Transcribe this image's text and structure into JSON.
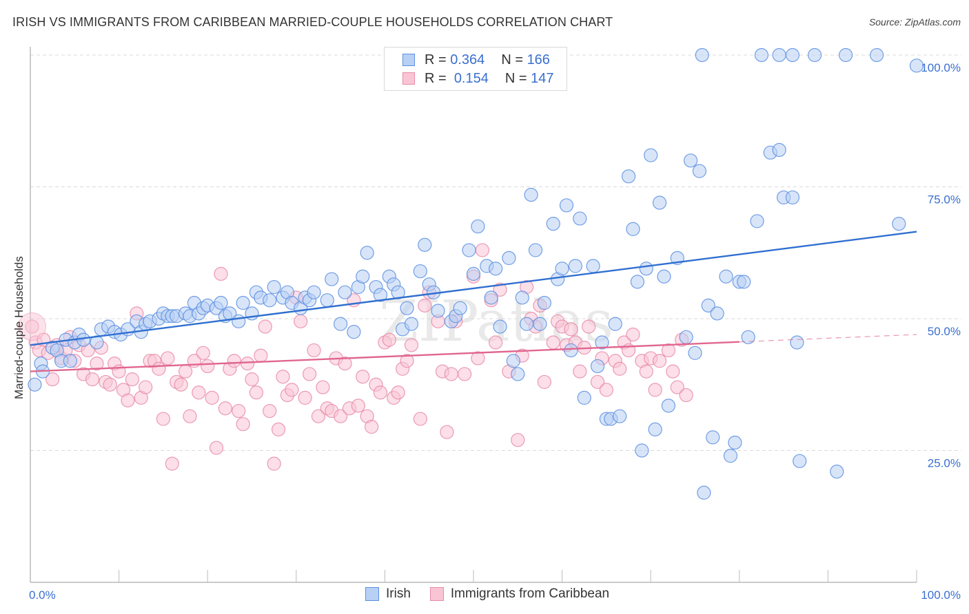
{
  "title": "IRISH VS IMMIGRANTS FROM CARIBBEAN MARRIED-COUPLE HOUSEHOLDS CORRELATION CHART",
  "source": "Source: ZipAtlas.com",
  "watermark": "ZIPatlas",
  "legend": {
    "rows": [
      {
        "r_label": "R =",
        "r_value": "0.364",
        "n_label": "N =",
        "n_value": "166"
      },
      {
        "r_label": "R =",
        "r_value": "0.154",
        "n_label": "N =",
        "n_value": "147"
      }
    ]
  },
  "bottom_legend": [
    "Irish",
    "Immigrants from Caribbean"
  ],
  "colors": {
    "irish_fill": "#b8d0f4",
    "irish_stroke": "#5b8ee0",
    "irish_line": "#2f6fd0",
    "carib_fill": "#f9c5d5",
    "carib_stroke": "#e88aa8",
    "carib_line": "#e0668f",
    "axis_text": "#3a6fd0"
  },
  "chart_data": {
    "type": "scatter",
    "title": "IRISH VS IMMIGRANTS FROM CARIBBEAN MARRIED-COUPLE HOUSEHOLDS CORRELATION CHART",
    "xlabel": "",
    "ylabel": "Married-couple Households",
    "xlim": [
      0,
      100
    ],
    "ylim": [
      0,
      100
    ],
    "x_tick_labels": [
      "0.0%",
      "100.0%"
    ],
    "y_tick_labels": [
      "25.0%",
      "50.0%",
      "75.0%",
      "100.0%"
    ],
    "y_ticks": [
      25,
      50,
      75,
      100
    ],
    "grid": true,
    "legend_position": "top-center",
    "series": [
      {
        "name": "Irish",
        "R": 0.364,
        "N": 166,
        "trend": {
          "x0": 0,
          "y0": 45.0,
          "x1": 100,
          "y1": 66.5,
          "dashed_from": null
        },
        "points": [
          [
            0.5,
            37.5
          ],
          [
            1.2,
            41.5
          ],
          [
            1.4,
            40.0
          ],
          [
            2.5,
            44.5
          ],
          [
            3.0,
            44.0
          ],
          [
            3.5,
            42.0
          ],
          [
            4.0,
            46.0
          ],
          [
            4.5,
            42.0
          ],
          [
            5.0,
            45.5
          ],
          [
            5.5,
            47.0
          ],
          [
            6.0,
            46.0
          ],
          [
            7.5,
            45.5
          ],
          [
            8.0,
            48.0
          ],
          [
            8.8,
            48.5
          ],
          [
            9.5,
            47.5
          ],
          [
            10.2,
            47.0
          ],
          [
            11.0,
            48.0
          ],
          [
            12.0,
            49.5
          ],
          [
            12.5,
            47.5
          ],
          [
            13.0,
            49.0
          ],
          [
            13.5,
            49.5
          ],
          [
            14.5,
            50.0
          ],
          [
            15.0,
            51.0
          ],
          [
            15.5,
            50.5
          ],
          [
            16.0,
            50.5
          ],
          [
            16.5,
            50.5
          ],
          [
            17.5,
            51.0
          ],
          [
            18.0,
            50.5
          ],
          [
            18.5,
            53.0
          ],
          [
            19.0,
            51.0
          ],
          [
            19.5,
            52.0
          ],
          [
            20.0,
            52.5
          ],
          [
            21.0,
            52.0
          ],
          [
            21.5,
            53.0
          ],
          [
            22.0,
            50.5
          ],
          [
            22.5,
            51.0
          ],
          [
            23.5,
            49.5
          ],
          [
            24.0,
            53.0
          ],
          [
            25.0,
            51.0
          ],
          [
            25.5,
            55.0
          ],
          [
            26.0,
            54.0
          ],
          [
            27.0,
            53.5
          ],
          [
            27.5,
            56.0
          ],
          [
            28.5,
            54.0
          ],
          [
            29.0,
            55.0
          ],
          [
            29.5,
            53.0
          ],
          [
            30.5,
            52.0
          ],
          [
            31.0,
            54.0
          ],
          [
            31.5,
            53.5
          ],
          [
            32.0,
            55.0
          ],
          [
            33.5,
            53.5
          ],
          [
            34.0,
            57.5
          ],
          [
            35.0,
            49.0
          ],
          [
            35.5,
            55.0
          ],
          [
            36.5,
            47.5
          ],
          [
            37.0,
            56.0
          ],
          [
            37.5,
            58.0
          ],
          [
            38.0,
            62.5
          ],
          [
            39.0,
            56.0
          ],
          [
            39.5,
            54.5
          ],
          [
            40.5,
            58.0
          ],
          [
            41.0,
            56.5
          ],
          [
            41.5,
            55.0
          ],
          [
            42.0,
            48.0
          ],
          [
            42.5,
            52.0
          ],
          [
            43.0,
            49.0
          ],
          [
            44.0,
            59.0
          ],
          [
            44.5,
            64.0
          ],
          [
            45.0,
            56.5
          ],
          [
            45.5,
            55.0
          ],
          [
            46.0,
            51.5
          ],
          [
            47.5,
            49.5
          ],
          [
            48.0,
            50.5
          ],
          [
            48.5,
            52.0
          ],
          [
            49.5,
            63.0
          ],
          [
            50.0,
            58.5
          ],
          [
            50.5,
            67.5
          ],
          [
            51.5,
            60.0
          ],
          [
            52.0,
            54.0
          ],
          [
            52.5,
            59.5
          ],
          [
            53.0,
            48.5
          ],
          [
            54.0,
            61.5
          ],
          [
            54.5,
            42.0
          ],
          [
            55.0,
            39.5
          ],
          [
            55.5,
            54.0
          ],
          [
            56.0,
            49.0
          ],
          [
            56.5,
            73.5
          ],
          [
            57.0,
            63.0
          ],
          [
            57.5,
            49.0
          ],
          [
            58.0,
            53.0
          ],
          [
            59.0,
            68.0
          ],
          [
            59.5,
            57.5
          ],
          [
            60.0,
            59.5
          ],
          [
            60.5,
            71.5
          ],
          [
            61.0,
            44.0
          ],
          [
            61.5,
            60.0
          ],
          [
            62.0,
            69.0
          ],
          [
            62.5,
            35.0
          ],
          [
            63.5,
            60.0
          ],
          [
            64.0,
            41.0
          ],
          [
            64.5,
            45.5
          ],
          [
            65.0,
            31.0
          ],
          [
            65.5,
            31.0
          ],
          [
            66.0,
            49.0
          ],
          [
            66.5,
            31.5
          ],
          [
            67.5,
            77.0
          ],
          [
            68.0,
            67.0
          ],
          [
            68.5,
            57.0
          ],
          [
            69.0,
            25.0
          ],
          [
            69.5,
            59.5
          ],
          [
            70.0,
            81.0
          ],
          [
            70.5,
            29.0
          ],
          [
            71.0,
            72.0
          ],
          [
            71.5,
            58.0
          ],
          [
            72.0,
            33.5
          ],
          [
            73.0,
            61.5
          ],
          [
            74.0,
            46.5
          ],
          [
            74.5,
            80.0
          ],
          [
            75.0,
            43.5
          ],
          [
            75.5,
            78.0
          ],
          [
            76.0,
            17.0
          ],
          [
            76.5,
            52.5
          ],
          [
            77.0,
            27.5
          ],
          [
            77.5,
            51.0
          ],
          [
            78.5,
            58.0
          ],
          [
            79.0,
            24.0
          ],
          [
            79.5,
            26.5
          ],
          [
            80.0,
            57.0
          ],
          [
            80.5,
            57.0
          ],
          [
            81.0,
            46.5
          ],
          [
            82.0,
            68.5
          ],
          [
            83.5,
            81.5
          ],
          [
            84.5,
            82.0
          ],
          [
            85.0,
            73.0
          ],
          [
            86.0,
            73.0
          ],
          [
            86.5,
            45.5
          ],
          [
            86.8,
            23.0
          ],
          [
            75.8,
            100
          ],
          [
            82.5,
            100
          ],
          [
            84.5,
            100
          ],
          [
            86.0,
            100
          ],
          [
            88.5,
            100
          ],
          [
            92.0,
            100
          ],
          [
            95.5,
            100
          ],
          [
            91.0,
            21.0
          ],
          [
            98.0,
            68.0
          ],
          [
            100,
            98.0
          ]
        ]
      },
      {
        "name": "Immigrants from Caribbean",
        "R": 0.154,
        "N": 147,
        "trend": {
          "x0": 0,
          "y0": 40.0,
          "x1": 100,
          "y1": 47.0,
          "dashed_from": 80
        },
        "points": [
          [
            0.2,
            48.5
          ],
          [
            0.6,
            45.5
          ],
          [
            1.0,
            44.0
          ],
          [
            1.5,
            46.0
          ],
          [
            2.0,
            43.5
          ],
          [
            2.5,
            38.5
          ],
          [
            3.0,
            45.0
          ],
          [
            3.5,
            42.5
          ],
          [
            4.0,
            44.0
          ],
          [
            4.5,
            46.5
          ],
          [
            5.0,
            42.0
          ],
          [
            5.5,
            45.0
          ],
          [
            6.0,
            39.5
          ],
          [
            6.5,
            44.0
          ],
          [
            7.0,
            38.5
          ],
          [
            7.5,
            41.5
          ],
          [
            8.0,
            44.5
          ],
          [
            8.5,
            38.0
          ],
          [
            9.0,
            37.5
          ],
          [
            9.5,
            41.5
          ],
          [
            10.0,
            40.0
          ],
          [
            10.5,
            36.5
          ],
          [
            11.0,
            34.5
          ],
          [
            11.5,
            38.5
          ],
          [
            12.0,
            51.0
          ],
          [
            12.5,
            35.0
          ],
          [
            13.0,
            37.0
          ],
          [
            13.5,
            42.0
          ],
          [
            14.0,
            42.0
          ],
          [
            14.5,
            40.5
          ],
          [
            15.0,
            31.0
          ],
          [
            15.5,
            42.5
          ],
          [
            16.0,
            22.5
          ],
          [
            16.5,
            38.0
          ],
          [
            17.0,
            37.5
          ],
          [
            17.5,
            40.0
          ],
          [
            18.0,
            31.5
          ],
          [
            18.5,
            42.0
          ],
          [
            19.0,
            36.0
          ],
          [
            19.5,
            43.5
          ],
          [
            20.0,
            41.0
          ],
          [
            20.5,
            35.0
          ],
          [
            21.0,
            25.5
          ],
          [
            21.5,
            58.5
          ],
          [
            22.0,
            33.0
          ],
          [
            22.5,
            40.5
          ],
          [
            23.0,
            42.0
          ],
          [
            23.5,
            32.5
          ],
          [
            24.0,
            30.0
          ],
          [
            24.5,
            41.5
          ],
          [
            25.0,
            38.5
          ],
          [
            25.5,
            36.0
          ],
          [
            26.0,
            43.0
          ],
          [
            26.5,
            48.5
          ],
          [
            27.0,
            32.5
          ],
          [
            27.5,
            22.5
          ],
          [
            28.0,
            29.0
          ],
          [
            28.5,
            39.0
          ],
          [
            29.0,
            35.5
          ],
          [
            29.5,
            36.5
          ],
          [
            30.0,
            54.0
          ],
          [
            30.5,
            49.5
          ],
          [
            31.0,
            35.0
          ],
          [
            31.5,
            39.5
          ],
          [
            32.0,
            44.0
          ],
          [
            32.5,
            31.5
          ],
          [
            33.0,
            37.0
          ],
          [
            33.5,
            33.0
          ],
          [
            34.0,
            32.5
          ],
          [
            34.5,
            42.5
          ],
          [
            35.0,
            31.5
          ],
          [
            35.5,
            41.5
          ],
          [
            36.0,
            33.0
          ],
          [
            36.5,
            53.5
          ],
          [
            37.0,
            33.5
          ],
          [
            37.5,
            39.0
          ],
          [
            38.0,
            31.5
          ],
          [
            38.5,
            29.5
          ],
          [
            39.0,
            37.5
          ],
          [
            39.5,
            36.0
          ],
          [
            40.0,
            45.5
          ],
          [
            40.5,
            46.0
          ],
          [
            41.0,
            35.0
          ],
          [
            41.5,
            36.0
          ],
          [
            42.0,
            40.5
          ],
          [
            42.5,
            42.0
          ],
          [
            43.0,
            45.0
          ],
          [
            44.0,
            31.0
          ],
          [
            44.5,
            52.5
          ],
          [
            45.0,
            55.0
          ],
          [
            46.0,
            49.5
          ],
          [
            46.5,
            40.0
          ],
          [
            47.0,
            28.5
          ],
          [
            47.5,
            39.5
          ],
          [
            48.0,
            49.5
          ],
          [
            49.0,
            39.5
          ],
          [
            50.0,
            58.0
          ],
          [
            50.5,
            42.5
          ],
          [
            51.0,
            63.0
          ],
          [
            52.0,
            53.5
          ],
          [
            52.5,
            45.5
          ],
          [
            53.0,
            55.5
          ],
          [
            54.0,
            40.0
          ],
          [
            55.0,
            27.0
          ],
          [
            55.5,
            43.0
          ],
          [
            56.0,
            56.0
          ],
          [
            56.5,
            50.0
          ],
          [
            57.0,
            48.5
          ],
          [
            57.5,
            52.5
          ],
          [
            58.0,
            38.0
          ],
          [
            59.0,
            45.5
          ],
          [
            59.5,
            49.5
          ],
          [
            60.0,
            48.5
          ],
          [
            60.5,
            45.0
          ],
          [
            61.0,
            48.0
          ],
          [
            61.5,
            45.5
          ],
          [
            62.0,
            40.0
          ],
          [
            62.5,
            44.5
          ],
          [
            63.0,
            48.5
          ],
          [
            64.0,
            38.0
          ],
          [
            64.5,
            42.5
          ],
          [
            65.0,
            36.5
          ],
          [
            66.0,
            42.0
          ],
          [
            66.5,
            40.5
          ],
          [
            67.0,
            45.5
          ],
          [
            67.5,
            44.0
          ],
          [
            68.0,
            47.0
          ],
          [
            69.0,
            42.0
          ],
          [
            69.5,
            40.0
          ],
          [
            70.0,
            42.5
          ],
          [
            70.5,
            36.5
          ],
          [
            71.0,
            42.0
          ],
          [
            72.0,
            44.0
          ],
          [
            72.5,
            40.0
          ],
          [
            73.0,
            37.0
          ],
          [
            73.5,
            46.0
          ],
          [
            74.0,
            35.5
          ]
        ]
      }
    ]
  }
}
